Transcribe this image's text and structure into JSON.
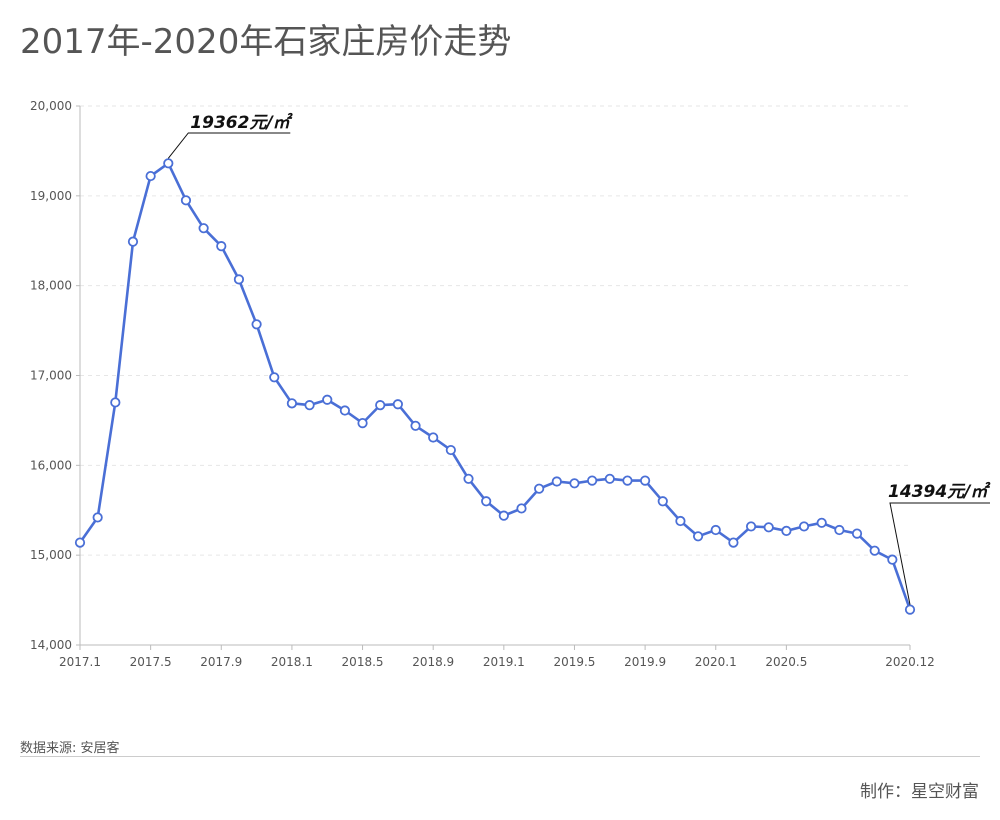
{
  "title": "2017年-2020年石家庄房价走势",
  "source": "数据来源: 安居客",
  "credit": "制作：星空财富",
  "colors": {
    "line": "#4a6fd6",
    "marker_fill": "#ffffff",
    "axis": "#bbbbbb",
    "grid": "#e6e6e6",
    "text": "#555555",
    "annotation": "#111111"
  },
  "chart_data": {
    "type": "line",
    "title": "",
    "xlabel": "",
    "ylabel": "",
    "ylim": [
      14000,
      20000
    ],
    "yticks": [
      14000,
      15000,
      16000,
      17000,
      18000,
      19000,
      20000
    ],
    "ytick_labels": [
      "14,000",
      "15,000",
      "16,000",
      "17,000",
      "18,000",
      "19,000",
      "20,000"
    ],
    "xtick_labels": [
      "2017.1",
      "2017.5",
      "2017.9",
      "2018.1",
      "2018.5",
      "2018.9",
      "2019.1",
      "2019.5",
      "2019.9",
      "2020.1",
      "2020.5",
      "2020.12"
    ],
    "xtick_index": [
      0,
      4,
      8,
      12,
      16,
      20,
      24,
      28,
      32,
      36,
      40,
      47
    ],
    "grid": true,
    "legend": "none",
    "series": [
      {
        "values": [
          15140,
          15420,
          16700,
          18490,
          19220,
          19362,
          18950,
          18640,
          18440,
          18070,
          17570,
          16980,
          16690,
          16670,
          16730,
          16610,
          16470,
          16670,
          16680,
          16440,
          16310,
          16170,
          15850,
          15600,
          15440,
          15520,
          15740,
          15820,
          15800,
          15830,
          15850,
          15830,
          15830,
          15600,
          15380,
          15210,
          15280,
          15140,
          15320,
          15310,
          15270,
          15320,
          15360,
          15280,
          15240,
          15050,
          14950,
          14394
        ]
      }
    ],
    "annotations": [
      {
        "text": "19362元/㎡",
        "index": 5
      },
      {
        "text": "14394元/㎡",
        "index": 47
      }
    ]
  }
}
